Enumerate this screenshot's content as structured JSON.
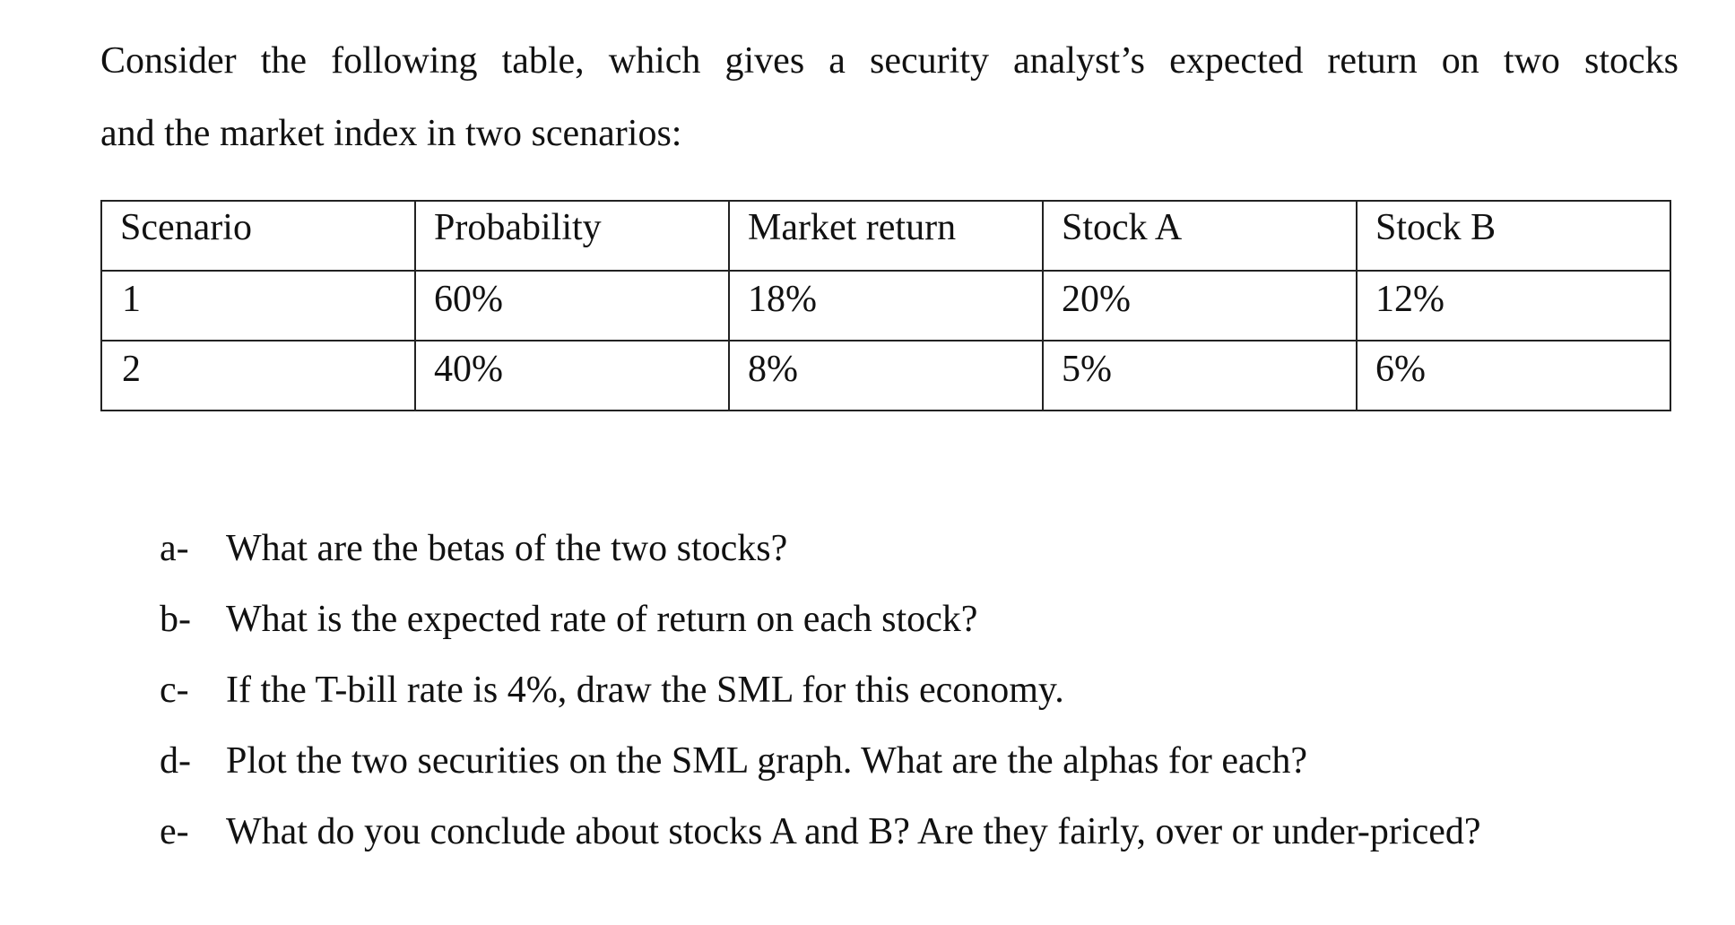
{
  "intro": {
    "line1": "Consider the following table, which gives a security analyst’s expected return on two stocks",
    "line2": "and the market index in two scenarios:"
  },
  "table": {
    "headers": [
      "Scenario",
      "Probability",
      "Market return",
      "Stock A",
      "Stock B"
    ],
    "rows": [
      [
        "1",
        "60%",
        "18%",
        "20%",
        "12%"
      ],
      [
        "2",
        "40%",
        "8%",
        "5%",
        "6%"
      ]
    ]
  },
  "questions": [
    {
      "marker": "a-",
      "text": "What are the betas of the two stocks?"
    },
    {
      "marker": "b-",
      "text": "What is the expected rate of return on each stock?"
    },
    {
      "marker": "c-",
      "text": "If the T-bill rate is 4%, draw the SML for this economy."
    },
    {
      "marker": "d-",
      "text": "Plot the two securities on the SML graph. What are the alphas for each?"
    },
    {
      "marker": "e-",
      "text": "What do you conclude about stocks A and B? Are they fairly, over or under-priced?"
    }
  ]
}
